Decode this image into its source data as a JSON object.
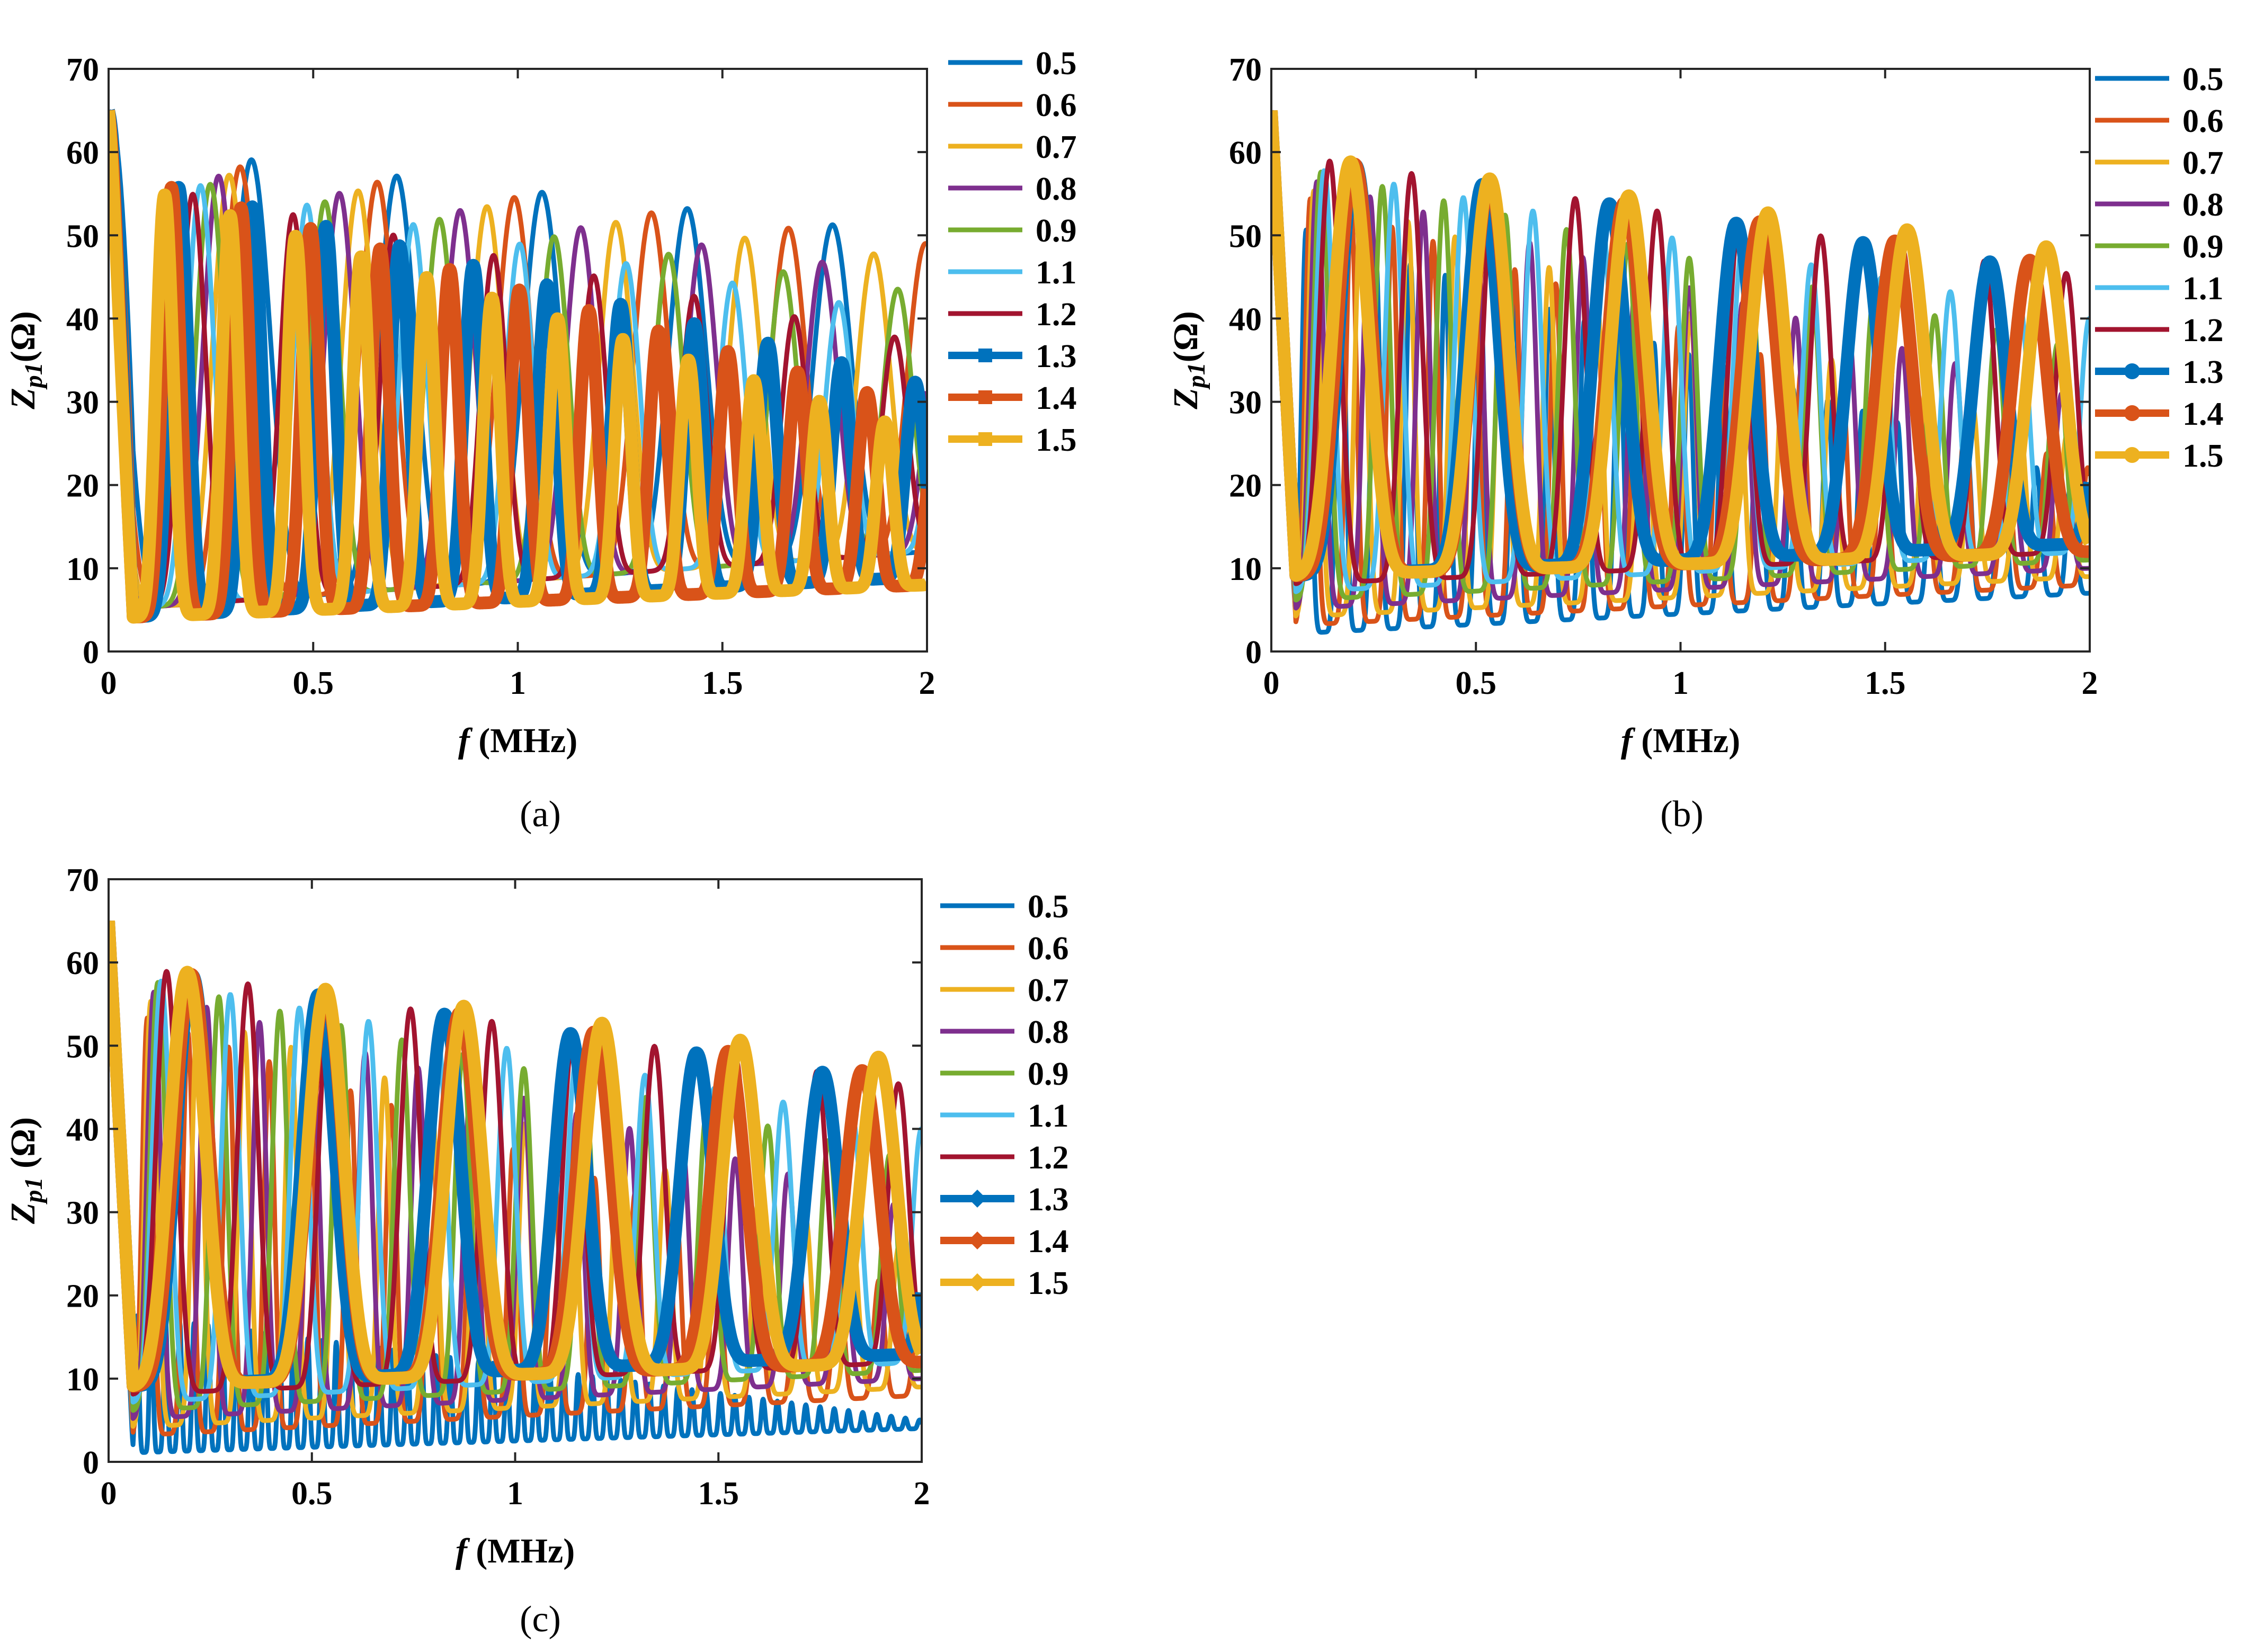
{
  "figure": {
    "legend_colors": [
      "#0072BD",
      "#D95319",
      "#EDB120",
      "#7E2F8E",
      "#77AC30",
      "#4DBEEE",
      "#A2142F",
      "#0072BD",
      "#D95319",
      "#EDB120"
    ]
  },
  "chart_data": [
    {
      "type": "line",
      "panel": "(a)",
      "caption": "(a)",
      "title": "",
      "xlabel_italic": "f",
      "xlabel_unit": " (MHz)",
      "ylabel_main": "Z",
      "ylabel_sub": "p1",
      "ylabel_unit": "(Ω)",
      "xlim": [
        0,
        2
      ],
      "ylim": [
        0,
        70
      ],
      "xticks": [
        0,
        0.5,
        1,
        1.5,
        2
      ],
      "xtick_labels": [
        "0",
        "0.5",
        "1",
        "1.5",
        "2"
      ],
      "yticks": [
        0,
        10,
        20,
        30,
        40,
        50,
        60,
        70
      ],
      "ytick_labels": [
        "0",
        "10",
        "20",
        "30",
        "40",
        "50",
        "60",
        "70"
      ],
      "legend_position": "outside-right",
      "legend_marker": "square",
      "series": [
        {
          "name": "0.5",
          "style": "thin",
          "period": 0.355,
          "peak_start": 61,
          "peak_end": 50,
          "min_start": 5,
          "min_end": 12,
          "phase": 0.1
        },
        {
          "name": "0.6",
          "style": "thin",
          "period": 0.335,
          "peak_start": 60,
          "peak_end": 49,
          "min_start": 5,
          "min_end": 12,
          "phase": 0.25
        },
        {
          "name": "0.7",
          "style": "thin",
          "period": 0.315,
          "peak_start": 59,
          "peak_end": 47,
          "min_start": 5,
          "min_end": 12,
          "phase": 0.4
        },
        {
          "name": "0.8",
          "style": "thin",
          "period": 0.295,
          "peak_start": 59,
          "peak_end": 45,
          "min_start": 5,
          "min_end": 12,
          "phase": 0.55
        },
        {
          "name": "0.9",
          "style": "thin",
          "period": 0.28,
          "peak_start": 58,
          "peak_end": 43,
          "min_start": 5,
          "min_end": 12,
          "phase": 0.7
        },
        {
          "name": "1.1",
          "style": "thin",
          "period": 0.26,
          "peak_start": 58,
          "peak_end": 40,
          "min_start": 5,
          "min_end": 12,
          "phase": 0.85
        },
        {
          "name": "1.2",
          "style": "thin",
          "period": 0.245,
          "peak_start": 57,
          "peak_end": 37,
          "min_start": 5,
          "min_end": 12,
          "phase": 1.0
        },
        {
          "name": "1.3",
          "style": "thick",
          "period": 0.18,
          "peak_start": 58,
          "peak_end": 32,
          "min_start": 4,
          "min_end": 9,
          "phase": 0.3
        },
        {
          "name": "1.4",
          "style": "thick",
          "period": 0.17,
          "peak_start": 58,
          "peak_end": 29,
          "min_start": 4,
          "min_end": 8,
          "phase": 0.6
        },
        {
          "name": "1.5",
          "style": "thick",
          "period": 0.16,
          "peak_start": 57,
          "peak_end": 26,
          "min_start": 4,
          "min_end": 8,
          "phase": 0.9
        }
      ]
    },
    {
      "type": "line",
      "panel": "(b)",
      "caption": "(b)",
      "title": "",
      "xlabel_italic": "f",
      "xlabel_unit": " (MHz)",
      "ylabel_main": "Z",
      "ylabel_sub": "p1",
      "ylabel_unit": "(Ω)",
      "xlim": [
        0,
        2
      ],
      "ylim": [
        0,
        70
      ],
      "xticks": [
        0,
        0.5,
        1,
        1.5,
        2
      ],
      "xtick_labels": [
        "0",
        "0.5",
        "1",
        "1.5",
        "2"
      ],
      "yticks": [
        0,
        10,
        20,
        30,
        40,
        50,
        60,
        70
      ],
      "ytick_labels": [
        "0",
        "10",
        "20",
        "30",
        "40",
        "50",
        "60",
        "70"
      ],
      "legend_position": "outside-right",
      "legend_marker": "circle",
      "series": [
        {
          "name": "0.5",
          "style": "thin",
          "period": 0.085,
          "peak_start": 52,
          "peak_end": 20,
          "min_start": 2,
          "min_end": 7,
          "phase": 0.0
        },
        {
          "name": "0.6",
          "style": "thin",
          "period": 0.1,
          "peak_start": 56,
          "peak_end": 22,
          "min_start": 3,
          "min_end": 8,
          "phase": 0.3
        },
        {
          "name": "0.7",
          "style": "thin",
          "period": 0.115,
          "peak_start": 57,
          "peak_end": 25,
          "min_start": 4,
          "min_end": 9,
          "phase": 0.6
        },
        {
          "name": "0.8",
          "style": "thin",
          "period": 0.13,
          "peak_start": 58,
          "peak_end": 30,
          "min_start": 5,
          "min_end": 10,
          "phase": 0.9
        },
        {
          "name": "0.9",
          "style": "thin",
          "period": 0.15,
          "peak_start": 59,
          "peak_end": 36,
          "min_start": 6,
          "min_end": 11,
          "phase": 1.2
        },
        {
          "name": "1.1",
          "style": "thin",
          "period": 0.17,
          "peak_start": 59,
          "peak_end": 40,
          "min_start": 7,
          "min_end": 12,
          "phase": 1.5
        },
        {
          "name": "1.2",
          "style": "thin",
          "period": 0.2,
          "peak_start": 60,
          "peak_end": 45,
          "min_start": 8,
          "min_end": 12,
          "phase": 1.8
        },
        {
          "name": "1.3",
          "style": "thick",
          "period": 0.31,
          "peak_start": 60,
          "peak_end": 45,
          "min_start": 9,
          "min_end": 13,
          "phase": 2.1
        },
        {
          "name": "1.4",
          "style": "thick",
          "period": 0.33,
          "peak_start": 60,
          "peak_end": 46,
          "min_start": 9,
          "min_end": 12,
          "phase": 2.4
        },
        {
          "name": "1.5",
          "style": "thick",
          "period": 0.34,
          "peak_start": 60,
          "peak_end": 48,
          "min_start": 9,
          "min_end": 12,
          "phase": 2.7
        }
      ]
    },
    {
      "type": "line",
      "panel": "(c)",
      "caption": "(c)",
      "title": "",
      "xlabel_italic": "f",
      "xlabel_unit": " (MHz)",
      "ylabel_main": "Z",
      "ylabel_sub": "p1",
      "ylabel_unit": " (Ω)",
      "xlim": [
        0,
        2
      ],
      "ylim": [
        0,
        70
      ],
      "xticks": [
        0,
        0.5,
        1,
        1.5,
        2
      ],
      "xtick_labels": [
        "0",
        "0.5",
        "1",
        "1.5",
        "2"
      ],
      "yticks": [
        0,
        10,
        20,
        30,
        40,
        50,
        60,
        70
      ],
      "ytick_labels": [
        "0",
        "10",
        "20",
        "30",
        "40",
        "50",
        "60",
        "70"
      ],
      "legend_position": "outside-right",
      "legend_marker": "diamond",
      "series": [
        {
          "name": "0.5",
          "style": "thin",
          "period": 0.035,
          "peak_start": 18,
          "peak_end": 5,
          "min_start": 1,
          "min_end": 4,
          "phase": 0.0
        },
        {
          "name": "0.6",
          "style": "thin",
          "period": 0.1,
          "peak_start": 55,
          "peak_end": 20,
          "min_start": 3,
          "min_end": 8,
          "phase": 0.3
        },
        {
          "name": "0.7",
          "style": "thin",
          "period": 0.115,
          "peak_start": 57,
          "peak_end": 25,
          "min_start": 4,
          "min_end": 9,
          "phase": 0.6
        },
        {
          "name": "0.8",
          "style": "thin",
          "period": 0.13,
          "peak_start": 58,
          "peak_end": 30,
          "min_start": 5,
          "min_end": 10,
          "phase": 0.9
        },
        {
          "name": "0.9",
          "style": "thin",
          "period": 0.15,
          "peak_start": 59,
          "peak_end": 36,
          "min_start": 6,
          "min_end": 11,
          "phase": 1.2
        },
        {
          "name": "1.1",
          "style": "thin",
          "period": 0.17,
          "peak_start": 59,
          "peak_end": 40,
          "min_start": 7,
          "min_end": 12,
          "phase": 1.5
        },
        {
          "name": "1.2",
          "style": "thin",
          "period": 0.2,
          "peak_start": 60,
          "peak_end": 45,
          "min_start": 8,
          "min_end": 12,
          "phase": 1.8
        },
        {
          "name": "1.3",
          "style": "thick",
          "period": 0.31,
          "peak_start": 60,
          "peak_end": 45,
          "min_start": 9,
          "min_end": 13,
          "phase": 2.1
        },
        {
          "name": "1.4",
          "style": "thick",
          "period": 0.33,
          "peak_start": 60,
          "peak_end": 46,
          "min_start": 9,
          "min_end": 12,
          "phase": 2.4
        },
        {
          "name": "1.5",
          "style": "thick",
          "period": 0.34,
          "peak_start": 60,
          "peak_end": 48,
          "min_start": 9,
          "min_end": 12,
          "phase": 2.7
        }
      ]
    }
  ]
}
